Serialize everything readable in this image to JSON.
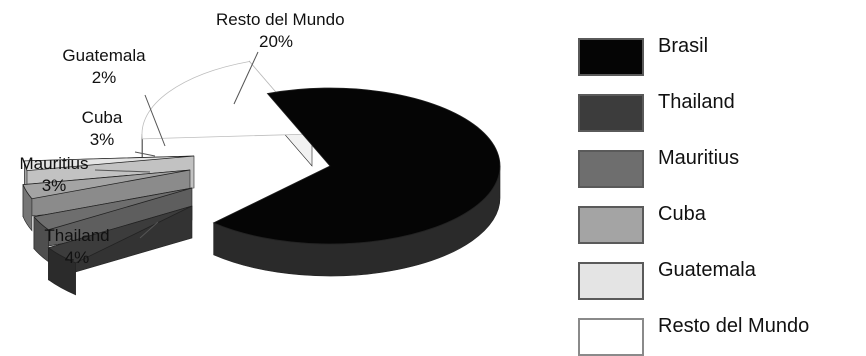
{
  "chart_data": {
    "type": "pie",
    "title": "",
    "three_d": true,
    "categories": [
      "Brasil",
      "Thailand",
      "Mauritius",
      "Cuba",
      "Guatemala",
      "Resto del Mundo"
    ],
    "values": [
      68,
      4,
      3,
      3,
      2,
      20
    ],
    "value_unit": "%",
    "exploded": true,
    "colors": [
      "#050505",
      "#3c3c3c",
      "#6e6e6e",
      "#a4a4a4",
      "#e4e4e4",
      "#ffffff"
    ],
    "legend": {
      "position": "right",
      "entries": [
        "Brasil",
        "Thailand",
        "Mauritius",
        "Cuba",
        "Guatemala",
        "Resto del Mundo"
      ]
    },
    "data_labels": [
      {
        "name": "Resto del Mundo",
        "value": "20%"
      },
      {
        "name": "Guatemala",
        "value": "2%"
      },
      {
        "name": "Cuba",
        "value": "3%"
      },
      {
        "name": "Mauritius",
        "value": "3%"
      },
      {
        "name": "Thailand",
        "value": "4%"
      }
    ]
  }
}
